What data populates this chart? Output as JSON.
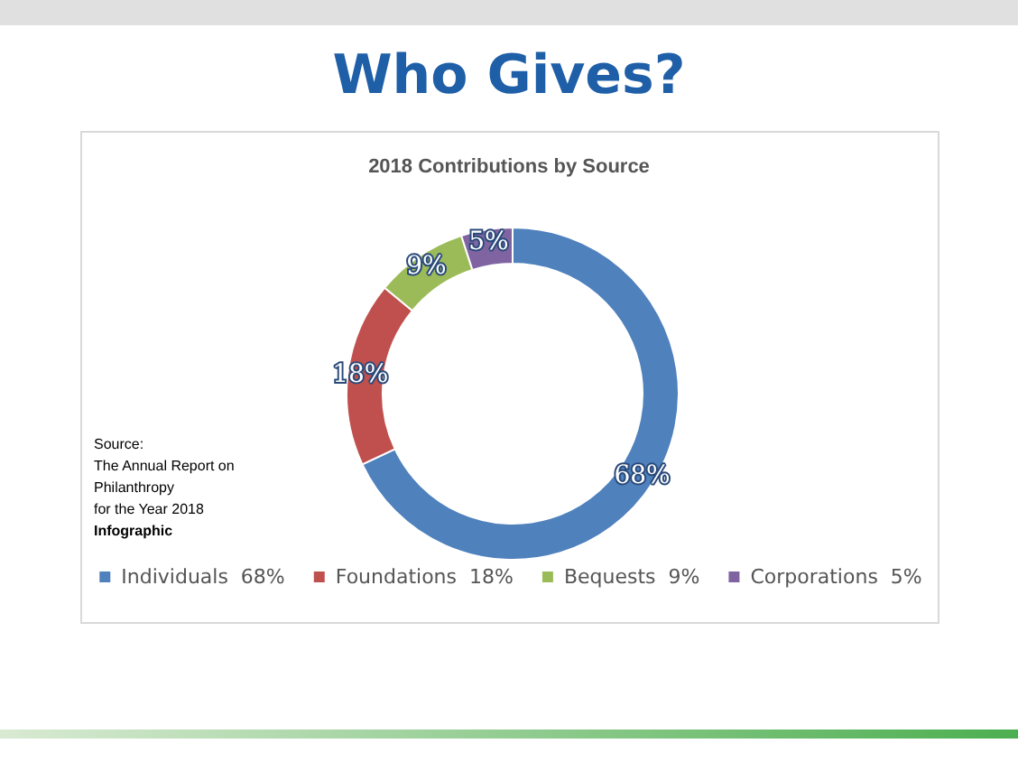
{
  "chart_data": {
    "type": "donut",
    "title": "Who Gives?",
    "subtitle": "2018 Contributions by Source",
    "categories": [
      "Individuals",
      "Foundations",
      "Bequests",
      "Corporations"
    ],
    "values": [
      68,
      18,
      9,
      5
    ],
    "colors": [
      "#4f81bd",
      "#c0504d",
      "#9bbb59",
      "#8064a2"
    ],
    "value_labels": [
      "68%",
      "18%",
      "9%",
      "5%"
    ],
    "legend": "bottom",
    "annotations": [
      "Source:",
      "The Annual Report on",
      "Philanthropy",
      "for the Year 2018",
      "Infographic"
    ]
  }
}
